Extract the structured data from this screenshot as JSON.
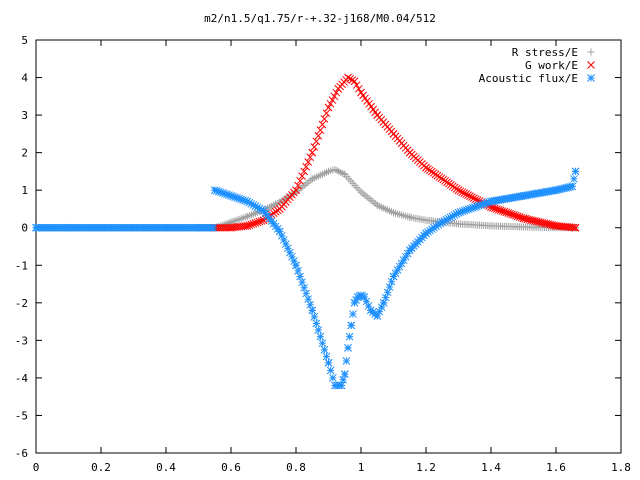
{
  "chart_data": {
    "type": "scatter",
    "title": "m2/n1.5/q1.75/r-+.32-j168/M0.04/512",
    "xlabel": "",
    "ylabel": "",
    "xlim": [
      0,
      1.8
    ],
    "ylim": [
      -6,
      5
    ],
    "x_ticks": [
      "0",
      "0.2",
      "0.4",
      "0.6",
      "0.8",
      "1",
      "1.2",
      "1.4",
      "1.6",
      "1.8"
    ],
    "y_ticks": [
      "-6",
      "-5",
      "-4",
      "-3",
      "-2",
      "-1",
      "0",
      "1",
      "2",
      "3",
      "4",
      "5"
    ],
    "grid": false,
    "legend_position": "top-right",
    "series": [
      {
        "name": "R stress/E",
        "marker": "plus",
        "color": "#a0a0a0",
        "x": [
          0.55,
          0.6,
          0.65,
          0.7,
          0.75,
          0.8,
          0.85,
          0.9,
          0.92,
          0.95,
          1.0,
          1.05,
          1.1,
          1.15,
          1.2,
          1.3,
          1.4,
          1.5,
          1.6,
          1.66
        ],
        "y": [
          0.0,
          0.15,
          0.3,
          0.47,
          0.68,
          0.95,
          1.3,
          1.5,
          1.55,
          1.42,
          0.95,
          0.6,
          0.4,
          0.28,
          0.2,
          0.1,
          0.05,
          0.02,
          0.0,
          0.0
        ]
      },
      {
        "name": "G work/E",
        "marker": "cross",
        "color": "#ff0000",
        "x": [
          0.55,
          0.6,
          0.65,
          0.7,
          0.75,
          0.8,
          0.85,
          0.9,
          0.93,
          0.96,
          0.98,
          1.0,
          1.05,
          1.1,
          1.15,
          1.2,
          1.3,
          1.4,
          1.5,
          1.6,
          1.66
        ],
        "y": [
          0.0,
          0.0,
          0.05,
          0.2,
          0.5,
          1.0,
          2.0,
          3.2,
          3.7,
          4.0,
          3.9,
          3.6,
          3.0,
          2.5,
          2.0,
          1.6,
          1.0,
          0.55,
          0.25,
          0.05,
          0.0
        ]
      },
      {
        "name": "Acoustic flux/E",
        "marker": "star",
        "color": "#1e90ff",
        "x": [
          0.0,
          0.1,
          0.2,
          0.3,
          0.4,
          0.5,
          0.545,
          0.55,
          0.6,
          0.65,
          0.7,
          0.75,
          0.8,
          0.85,
          0.9,
          0.92,
          0.94,
          0.95,
          0.96,
          0.97,
          0.98,
          0.99,
          1.0,
          1.01,
          1.03,
          1.05,
          1.07,
          1.1,
          1.15,
          1.2,
          1.25,
          1.3,
          1.35,
          1.4,
          1.5,
          1.6,
          1.65,
          1.66
        ],
        "y": [
          0.0,
          0.0,
          0.0,
          0.0,
          0.0,
          0.0,
          0.0,
          1.0,
          0.85,
          0.7,
          0.45,
          -0.1,
          -1.0,
          -2.2,
          -3.6,
          -4.2,
          -4.2,
          -3.9,
          -3.2,
          -2.6,
          -2.0,
          -1.85,
          -1.8,
          -1.85,
          -2.2,
          -2.35,
          -2.0,
          -1.3,
          -0.6,
          -0.15,
          0.15,
          0.4,
          0.55,
          0.7,
          0.85,
          1.0,
          1.1,
          1.5
        ]
      }
    ]
  }
}
